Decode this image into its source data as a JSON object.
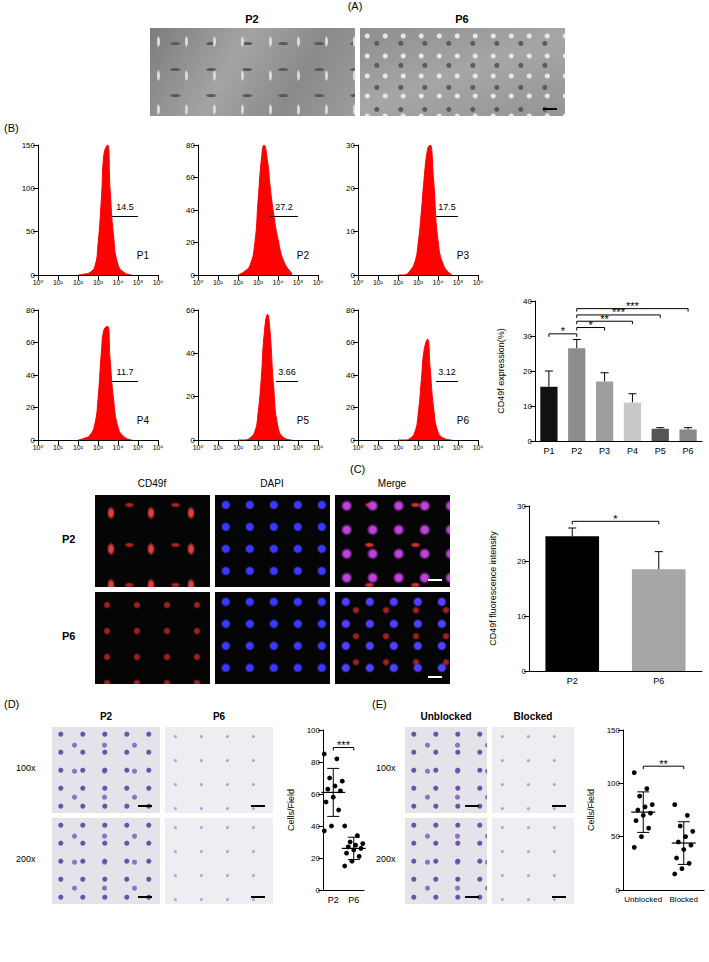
{
  "figure": {
    "A": {
      "label": "(A)",
      "images": [
        "P2",
        "P6"
      ]
    },
    "B": {
      "label": "(B)"
    },
    "C": {
      "label": "(C)",
      "columns": [
        "CD49f",
        "DAPI",
        "Merge"
      ],
      "rows": [
        "P2",
        "P6"
      ]
    },
    "D": {
      "label": "(D)",
      "columns": [
        "P2",
        "P6"
      ],
      "rows": [
        "100x",
        "200x"
      ]
    },
    "E": {
      "label": "(E)",
      "columns": [
        "Unblocked",
        "Blocked"
      ],
      "rows": [
        "100x",
        "200x"
      ]
    }
  },
  "chart_data": [
    {
      "type": "area",
      "title": "P1",
      "log": "x",
      "color": "#ff0000",
      "x": [
        100,
        200,
        400,
        700,
        1000,
        1500,
        2000,
        3000,
        4000,
        6000,
        10000,
        20000,
        50000
      ],
      "values": [
        0,
        1,
        3,
        10,
        35,
        90,
        140,
        150,
        100,
        45,
        12,
        3,
        0
      ],
      "xlim": [
        1,
        1000000
      ],
      "xticks": [
        {
          "value": 1,
          "label": "10⁰"
        },
        {
          "value": 10,
          "label": "10¹"
        },
        {
          "value": 100,
          "label": "10²"
        },
        {
          "value": 1000,
          "label": "10³"
        },
        {
          "value": 10000,
          "label": "10⁴"
        },
        {
          "value": 100000,
          "label": "10⁵"
        },
        {
          "value": 1000000,
          "label": "10⁶"
        }
      ],
      "ylim": [
        0,
        150
      ],
      "yticks": [
        0,
        50,
        100,
        150
      ],
      "gate": {
        "value": 14.5,
        "range": [
          5000,
          100000
        ]
      }
    },
    {
      "type": "area",
      "title": "P2",
      "log": "x",
      "color": "#ff0000",
      "x": [
        100,
        200,
        400,
        700,
        1000,
        1500,
        2000,
        3000,
        4000,
        6000,
        10000,
        20000,
        50000
      ],
      "values": [
        0,
        2,
        6,
        20,
        45,
        72,
        80,
        70,
        55,
        38,
        22,
        8,
        1
      ],
      "xlim": [
        1,
        1000000
      ],
      "xticks": [
        {
          "value": 1,
          "label": "10⁰"
        },
        {
          "value": 10,
          "label": "10¹"
        },
        {
          "value": 100,
          "label": "10²"
        },
        {
          "value": 1000,
          "label": "10³"
        },
        {
          "value": 10000,
          "label": "10⁴"
        },
        {
          "value": 100000,
          "label": "10⁵"
        },
        {
          "value": 1000000,
          "label": "10⁶"
        }
      ],
      "ylim": [
        0,
        80
      ],
      "yticks": [
        0,
        20,
        40,
        60,
        80
      ],
      "gate": {
        "value": 27.2,
        "range": [
          4000,
          100000
        ]
      }
    },
    {
      "type": "area",
      "title": "P3",
      "log": "x",
      "color": "#ff0000",
      "x": [
        100,
        200,
        400,
        700,
        1000,
        1500,
        2000,
        3000,
        4000,
        6000,
        10000,
        20000,
        50000
      ],
      "values": [
        0,
        0,
        1,
        3,
        7,
        15,
        22,
        29,
        30,
        22,
        8,
        2,
        0
      ],
      "xlim": [
        1,
        1000000
      ],
      "xticks": [
        {
          "value": 1,
          "label": "10⁰"
        },
        {
          "value": 10,
          "label": "10¹"
        },
        {
          "value": 100,
          "label": "10²"
        },
        {
          "value": 1000,
          "label": "10³"
        },
        {
          "value": 10000,
          "label": "10⁴"
        },
        {
          "value": 100000,
          "label": "10⁵"
        },
        {
          "value": 1000000,
          "label": "10⁶"
        }
      ],
      "ylim": [
        0,
        30
      ],
      "yticks": [
        0,
        10,
        20,
        30
      ],
      "gate": {
        "value": 17.5,
        "range": [
          8000,
          100000
        ]
      }
    },
    {
      "type": "area",
      "title": "P4",
      "log": "x",
      "color": "#ff0000",
      "x": [
        100,
        200,
        400,
        700,
        1000,
        1500,
        2000,
        3000,
        4000,
        6000,
        10000,
        20000,
        50000
      ],
      "values": [
        0,
        1,
        3,
        10,
        25,
        55,
        68,
        70,
        50,
        25,
        8,
        2,
        0
      ],
      "xlim": [
        1,
        1000000
      ],
      "xticks": [
        {
          "value": 1,
          "label": "10⁰"
        },
        {
          "value": 10,
          "label": "10¹"
        },
        {
          "value": 100,
          "label": "10²"
        },
        {
          "value": 1000,
          "label": "10³"
        },
        {
          "value": 10000,
          "label": "10⁴"
        },
        {
          "value": 100000,
          "label": "10⁵"
        },
        {
          "value": 1000000,
          "label": "10⁶"
        }
      ],
      "ylim": [
        0,
        80
      ],
      "yticks": [
        0,
        20,
        40,
        60,
        80
      ],
      "gate": {
        "value": 11.7,
        "range": [
          5000,
          100000
        ]
      }
    },
    {
      "type": "area",
      "title": "P5",
      "log": "x",
      "color": "#ff0000",
      "x": [
        100,
        200,
        400,
        700,
        1000,
        1500,
        2000,
        3000,
        4000,
        6000,
        10000,
        20000,
        50000
      ],
      "values": [
        0,
        0,
        1,
        4,
        12,
        30,
        48,
        58,
        50,
        25,
        6,
        1,
        0
      ],
      "xlim": [
        1,
        1000000
      ],
      "xticks": [
        {
          "value": 1,
          "label": "10⁰"
        },
        {
          "value": 10,
          "label": "10¹"
        },
        {
          "value": 100,
          "label": "10²"
        },
        {
          "value": 1000,
          "label": "10³"
        },
        {
          "value": 10000,
          "label": "10⁴"
        },
        {
          "value": 100000,
          "label": "10⁵"
        },
        {
          "value": 1000000,
          "label": "10⁶"
        }
      ],
      "ylim": [
        0,
        60
      ],
      "yticks": [
        0,
        20,
        40,
        60
      ],
      "gate": {
        "value": 3.66,
        "range": [
          8000,
          100000
        ]
      }
    },
    {
      "type": "area",
      "title": "P6",
      "log": "x",
      "color": "#ff0000",
      "x": [
        100,
        200,
        400,
        700,
        1000,
        1500,
        2000,
        3000,
        4000,
        6000,
        10000,
        20000,
        50000
      ],
      "values": [
        0,
        0,
        1,
        5,
        15,
        38,
        55,
        62,
        45,
        20,
        5,
        1,
        0
      ],
      "xlim": [
        1,
        1000000
      ],
      "xticks": [
        {
          "value": 1,
          "label": "10⁰"
        },
        {
          "value": 10,
          "label": "10¹"
        },
        {
          "value": 100,
          "label": "10²"
        },
        {
          "value": 1000,
          "label": "10³"
        },
        {
          "value": 10000,
          "label": "10⁴"
        },
        {
          "value": 100000,
          "label": "10⁵"
        },
        {
          "value": 1000000,
          "label": "10⁶"
        }
      ],
      "ylim": [
        0,
        80
      ],
      "yticks": [
        0,
        20,
        40,
        60,
        80
      ],
      "gate": {
        "value": 3.12,
        "range": [
          8000,
          100000
        ]
      }
    },
    {
      "type": "bar",
      "categories": [
        "P1",
        "P2",
        "P3",
        "P4",
        "P5",
        "P6"
      ],
      "values": [
        15.5,
        26.5,
        17,
        11,
        3.5,
        3.3
      ],
      "errors": [
        4.5,
        2.5,
        2.5,
        2.5,
        0.3,
        0.5
      ],
      "colors": [
        "#111111",
        "#8c8c8c",
        "#9e9e9e",
        "#c8c8c8",
        "#555555",
        "#888888"
      ],
      "y_label": "CD49f expression(%)",
      "ylim": [
        0,
        40
      ],
      "yticks": [
        0,
        10,
        20,
        30,
        40
      ],
      "significance": [
        {
          "between": [
            "P1",
            "P2"
          ],
          "label": "*"
        },
        {
          "between": [
            "P2",
            "P3"
          ],
          "label": "*"
        },
        {
          "between": [
            "P2",
            "P4"
          ],
          "label": "**"
        },
        {
          "between": [
            "P2",
            "P5"
          ],
          "label": "***"
        },
        {
          "between": [
            "P2",
            "P6"
          ],
          "label": "***"
        }
      ]
    },
    {
      "type": "bar",
      "categories": [
        "P2",
        "P6"
      ],
      "values": [
        24.5,
        18.5
      ],
      "errors": [
        1.5,
        3.2
      ],
      "colors": [
        "#000000",
        "#a6a6a6"
      ],
      "y_label": "CD49f fluorescence intensity",
      "ylim": [
        0,
        30
      ],
      "yticks": [
        0,
        10,
        20,
        30
      ],
      "significance": [
        {
          "between": [
            "P2",
            "P6"
          ],
          "label": "*"
        }
      ]
    },
    {
      "type": "scatter",
      "categories": [
        "P2",
        "P6"
      ],
      "marker": "circle",
      "color": "#000000",
      "values": [
        [
          85,
          82,
          70,
          68,
          65,
          63,
          62,
          58,
          55,
          50,
          40,
          37
        ],
        [
          40,
          34,
          30,
          29,
          28,
          27,
          26,
          25,
          23,
          21,
          18,
          15
        ]
      ],
      "means": [
        61,
        26
      ],
      "sd": [
        15,
        7
      ],
      "y_label": "Cells/Field",
      "ylim": [
        0,
        100
      ],
      "yticks": [
        0,
        20,
        40,
        60,
        80,
        100
      ],
      "significance": [
        {
          "between": [
            "P2",
            "P6"
          ],
          "label": "***"
        }
      ]
    },
    {
      "type": "scatter",
      "categories": [
        "Unblocked",
        "Blocked"
      ],
      "marker": "circle",
      "color": "#000000",
      "values": [
        [
          110,
          95,
          88,
          80,
          78,
          75,
          72,
          70,
          65,
          58,
          50,
          40
        ],
        [
          80,
          70,
          60,
          55,
          50,
          45,
          42,
          38,
          30,
          25,
          20,
          15
        ]
      ],
      "means": [
        73,
        44
      ],
      "sd": [
        19,
        20
      ],
      "y_label": "Cells/Field",
      "ylim": [
        0,
        150
      ],
      "yticks": [
        0,
        50,
        100,
        150
      ],
      "significance": [
        {
          "between": [
            "Unblocked",
            "Blocked"
          ],
          "label": "**"
        }
      ]
    }
  ]
}
